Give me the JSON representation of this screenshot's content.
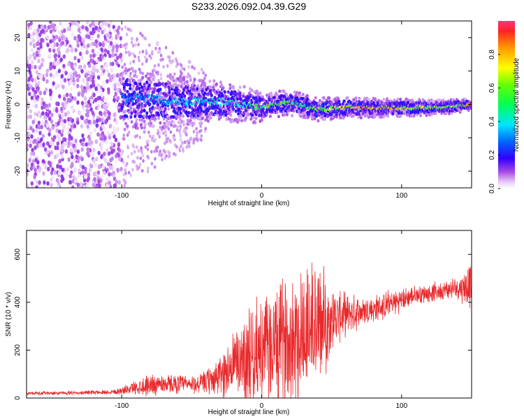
{
  "figure_title": "S233.2026.092.04.39.G29",
  "colors": {
    "snr_line": "#e8292c",
    "axis": "#000000",
    "background": "#ffffff"
  },
  "chart_data": [
    {
      "type": "heatmap",
      "title": "",
      "xlabel": "Height of straight line (km)",
      "ylabel": "Frequency (Hz)",
      "xlim": [
        -168,
        150
      ],
      "ylim": [
        -25,
        25
      ],
      "x_ticks": [
        -100,
        0,
        100
      ],
      "y_ticks": [
        -20,
        -10,
        0,
        10,
        20
      ],
      "grid": false,
      "colorbar": {
        "label": "Normalized spectral amplitude",
        "range": [
          0,
          1
        ],
        "ticks": [
          0.0,
          0.2,
          0.4,
          0.6,
          0.8
        ],
        "tick_labels": [
          "0.0",
          "0.2",
          "0.4",
          "0.6",
          "0.8"
        ],
        "colormap": "rainbow (white-lavender-violet-blue-cyan-green-yellow-orange-red)"
      },
      "ridge": {
        "description": "dominant frequency trace",
        "x": [
          -100,
          -60,
          -40,
          -20,
          0,
          10,
          20,
          30,
          40,
          60,
          80,
          100,
          120,
          140,
          150
        ],
        "frequency": [
          2,
          1,
          1,
          0.5,
          -1,
          0,
          0.5,
          -0.5,
          -1.5,
          -1,
          -1,
          -1,
          -1,
          -0.5,
          0
        ],
        "amplitude": [
          0.3,
          0.35,
          0.4,
          0.45,
          0.55,
          0.6,
          0.55,
          0.5,
          0.6,
          0.7,
          0.85,
          0.7,
          0.65,
          0.6,
          0.9
        ]
      },
      "noise_region": {
        "x_range": [
          -168,
          -100
        ],
        "frequency_range": [
          -25,
          25
        ],
        "amplitude": [
          0.02,
          0.2
        ]
      }
    },
    {
      "type": "line",
      "title": "",
      "xlabel": "Height of straight line (km)",
      "ylabel": "SNR (10 * v/v)",
      "xlim": [
        -168,
        150
      ],
      "ylim": [
        0,
        700
      ],
      "x_ticks": [
        -100,
        0,
        100
      ],
      "y_ticks": [
        0,
        200,
        400,
        600
      ],
      "grid": false,
      "series": [
        {
          "color": "#e8292c",
          "x": [
            -168,
            -150,
            -130,
            -110,
            -100,
            -90,
            -80,
            -70,
            -60,
            -50,
            -40,
            -30,
            -20,
            -10,
            0,
            10,
            20,
            30,
            40,
            50,
            60,
            70,
            80,
            90,
            100,
            110,
            120,
            130,
            140,
            150
          ],
          "y_mean": [
            20,
            20,
            22,
            25,
            30,
            45,
            55,
            60,
            60,
            55,
            65,
            90,
            140,
            180,
            200,
            220,
            250,
            290,
            300,
            330,
            350,
            360,
            370,
            390,
            410,
            430,
            440,
            450,
            460,
            470
          ],
          "y_amplitude": [
            8,
            8,
            8,
            10,
            15,
            30,
            50,
            40,
            40,
            40,
            50,
            90,
            150,
            220,
            220,
            260,
            300,
            320,
            300,
            140,
            90,
            70,
            60,
            60,
            50,
            40,
            40,
            40,
            50,
            100
          ]
        }
      ]
    }
  ]
}
